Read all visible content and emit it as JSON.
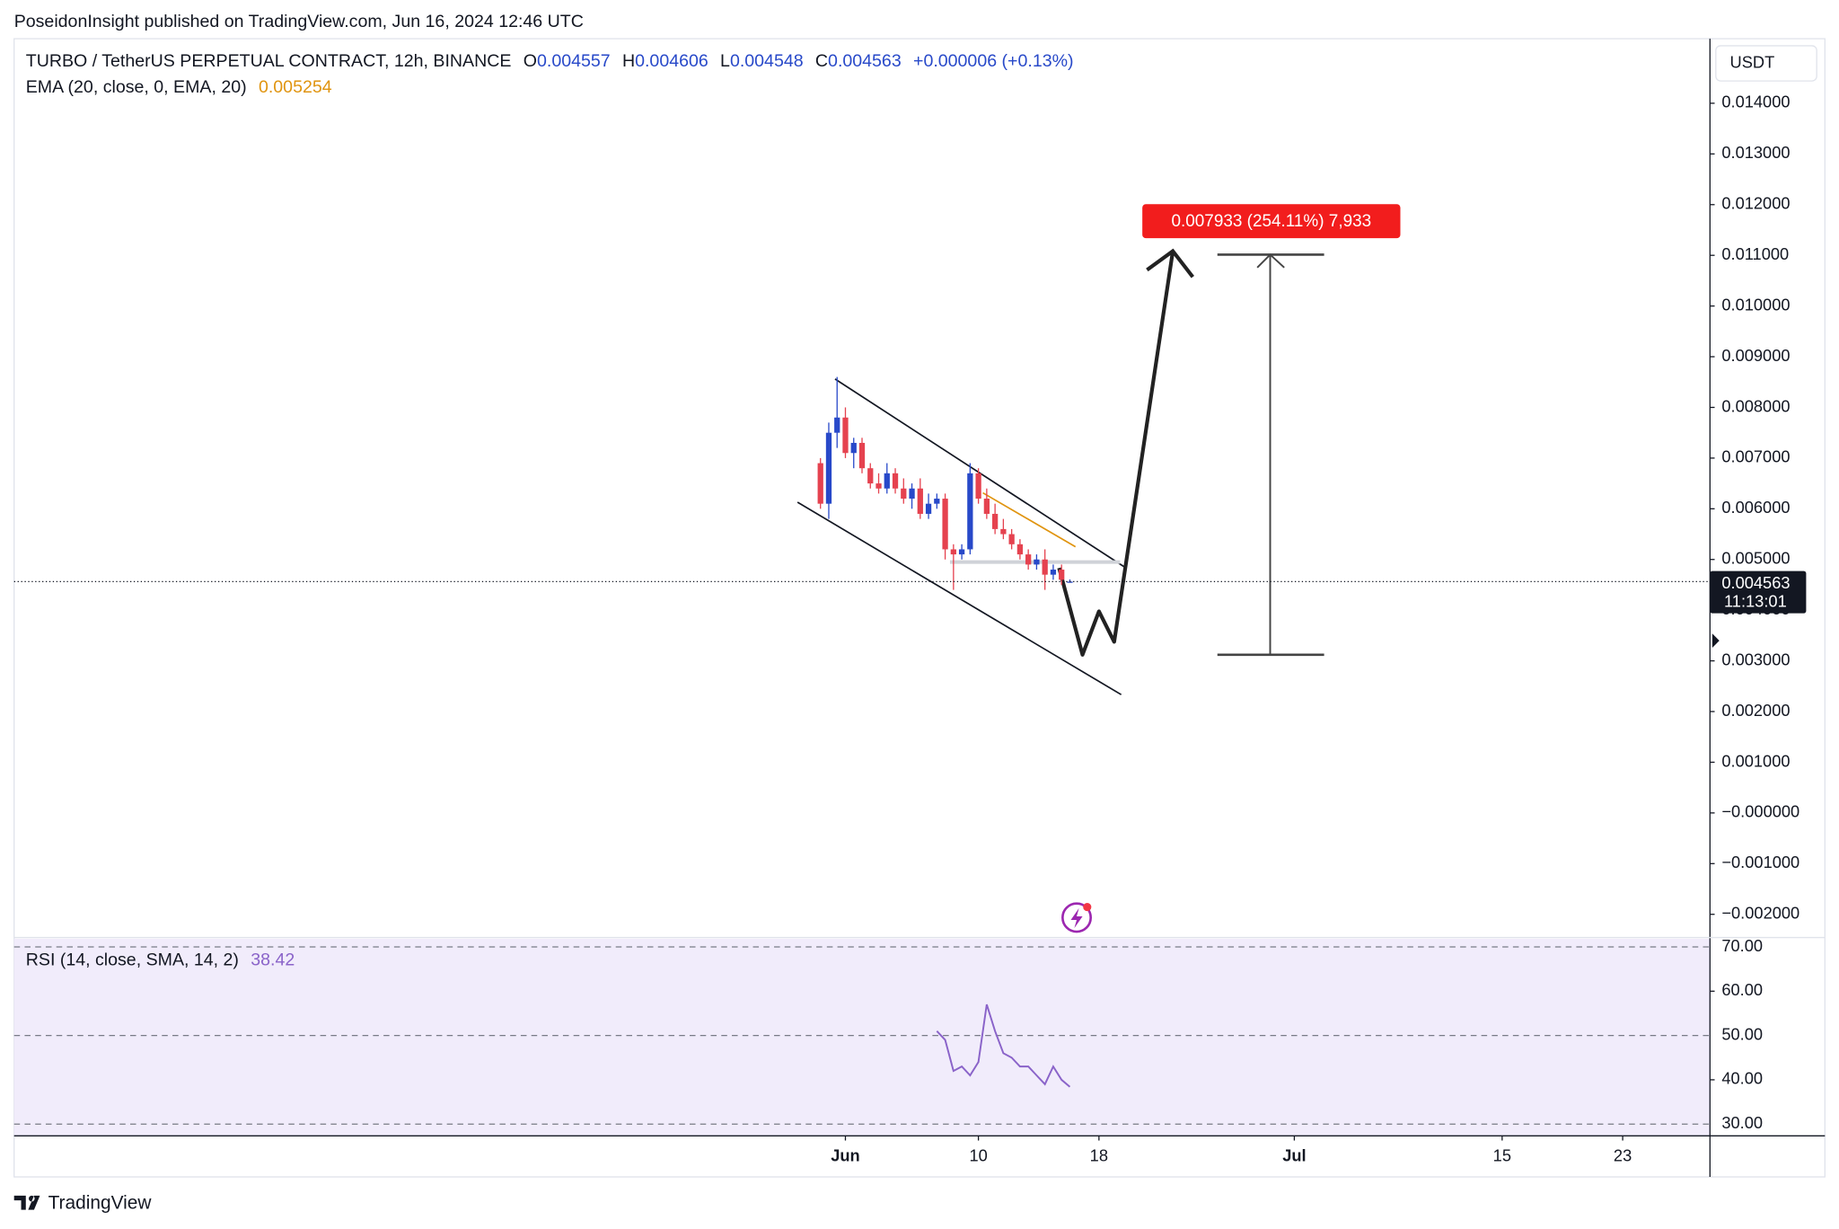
{
  "header": {
    "publisher": "PoseidonInsight published on TradingView.com, Jun 16, 2024 12:46 UTC"
  },
  "footer": {
    "brand": "TradingView"
  },
  "chart_data": {
    "type": "candlestick",
    "title": "TURBO / TetherUS PERPETUAL CONTRACT, 12h, BINANCE",
    "ohlc_labels": [
      "O",
      "H",
      "L",
      "C"
    ],
    "change": "+0.000006 (+0.13%)",
    "currency": "USDT",
    "countdown": "11:13:01",
    "measure_label": "0.007933 (254.11%) 7,933",
    "up_color": "#2849c9",
    "down_color": "#e5424f",
    "candles": {
      "open": [
        0.0069,
        0.0061,
        0.0075,
        0.0078,
        0.0071,
        0.0073,
        0.0068,
        0.0065,
        0.0064,
        0.0067,
        0.0064,
        0.0062,
        0.0064,
        0.0059,
        0.0061,
        0.0062,
        0.0052,
        0.0051,
        0.0052,
        0.0067,
        0.0062,
        0.0059,
        0.0056,
        0.0055,
        0.0053,
        0.0051,
        0.0049,
        0.005,
        0.0047,
        0.0048,
        0.004557
      ],
      "high": [
        0.007,
        0.0077,
        0.0086,
        0.008,
        0.0074,
        0.0074,
        0.0069,
        0.0067,
        0.0069,
        0.0068,
        0.0066,
        0.0065,
        0.0066,
        0.0063,
        0.0063,
        0.0063,
        0.0053,
        0.0053,
        0.0069,
        0.0068,
        0.0064,
        0.0061,
        0.0058,
        0.0056,
        0.0054,
        0.0052,
        0.0051,
        0.0052,
        0.0049,
        0.0049,
        0.004606
      ],
      "low": [
        0.006,
        0.0058,
        0.0072,
        0.007,
        0.0068,
        0.0067,
        0.0064,
        0.0063,
        0.0063,
        0.0063,
        0.0061,
        0.006,
        0.0058,
        0.0058,
        0.006,
        0.005,
        0.0044,
        0.005,
        0.0051,
        0.0061,
        0.0058,
        0.0055,
        0.0054,
        0.0052,
        0.005,
        0.0048,
        0.0048,
        0.0044,
        0.0046,
        0.0045,
        0.004548
      ],
      "close": [
        0.0061,
        0.0075,
        0.0078,
        0.0071,
        0.0073,
        0.0068,
        0.0065,
        0.0064,
        0.0067,
        0.0064,
        0.0062,
        0.0064,
        0.0059,
        0.0061,
        0.0062,
        0.0052,
        0.0051,
        0.0052,
        0.0067,
        0.0062,
        0.0059,
        0.0056,
        0.0055,
        0.0053,
        0.0051,
        0.0049,
        0.005,
        0.0047,
        0.0048,
        0.0046,
        0.004563
      ]
    },
    "xlim": [
      -97,
      107
    ],
    "xticks": [
      {
        "value": 3,
        "label": "Jun"
      },
      {
        "value": 19,
        "label": "10"
      },
      {
        "value": 33.5,
        "label": "18"
      },
      {
        "value": 57,
        "label": "Jul"
      },
      {
        "value": 82,
        "label": "15"
      },
      {
        "value": 96.5,
        "label": "23"
      }
    ],
    "ylim": [
      -0.002435,
      0.015273
    ],
    "yticks": [
      {
        "value": 0.014,
        "label": "0.014000"
      },
      {
        "value": 0.013,
        "label": "0.013000"
      },
      {
        "value": 0.012,
        "label": "0.012000"
      },
      {
        "value": 0.011,
        "label": "0.011000"
      },
      {
        "value": 0.01,
        "label": "0.010000"
      },
      {
        "value": 0.009,
        "label": "0.009000"
      },
      {
        "value": 0.008,
        "label": "0.008000"
      },
      {
        "value": 0.007,
        "label": "0.007000"
      },
      {
        "value": 0.006,
        "label": "0.006000"
      },
      {
        "value": 0.005,
        "label": "0.005000"
      },
      {
        "value": 0.004,
        "label": "0.004000"
      },
      {
        "value": 0.003,
        "label": "0.003000"
      },
      {
        "value": 0.002,
        "label": "0.002000"
      },
      {
        "value": 0.001,
        "label": "0.001000"
      },
      {
        "value": 0,
        "label": "−0.000000"
      },
      {
        "value": -0.001,
        "label": "−0.001000"
      },
      {
        "value": -0.002,
        "label": "−0.002000"
      }
    ],
    "ema": {
      "label": "EMA (20, close, 0, EMA, 20)",
      "value": 0.005254,
      "color": "#e0940f"
    },
    "rsi": {
      "label": "RSI (14, close, SMA, 14, 2)",
      "value": 38.42,
      "color": "#8a63c9",
      "values": [
        null,
        null,
        null,
        null,
        null,
        null,
        null,
        null,
        null,
        null,
        null,
        null,
        null,
        null,
        51,
        49,
        42,
        43,
        41,
        44,
        57,
        51,
        46,
        45,
        43,
        43,
        41,
        39,
        43,
        40,
        38.42
      ],
      "ylim": [
        27.35,
        71.85
      ],
      "yticks": [
        {
          "value": 70,
          "label": "70.00"
        },
        {
          "value": 60,
          "label": "60.00"
        },
        {
          "value": 50,
          "label": "50.00"
        },
        {
          "value": 40,
          "label": "40.00"
        },
        {
          "value": 30,
          "label": "30.00"
        }
      ]
    }
  }
}
